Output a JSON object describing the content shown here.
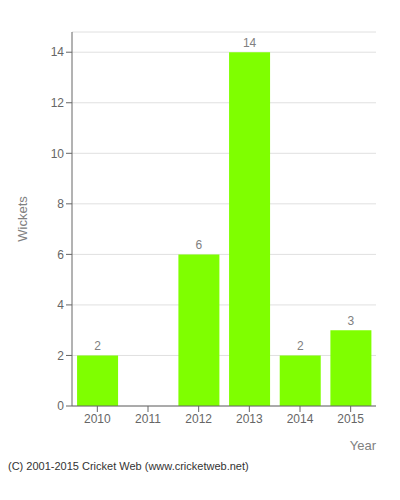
{
  "chart_data": {
    "type": "bar",
    "categories": [
      "2010",
      "2011",
      "2012",
      "2013",
      "2014",
      "2015"
    ],
    "values": [
      2,
      0,
      6,
      14,
      2,
      3
    ],
    "color": "#7FFF00",
    "xlabel": "Year",
    "ylabel": "Wickets",
    "ylim": [
      0,
      14.8
    ],
    "yticks": [
      0,
      2,
      4,
      6,
      8,
      10,
      12,
      14
    ],
    "grid": true,
    "data_labels": true,
    "annotations": [
      "(C) 2001-2015 Cricket Web (www.cricketweb.net)"
    ]
  }
}
